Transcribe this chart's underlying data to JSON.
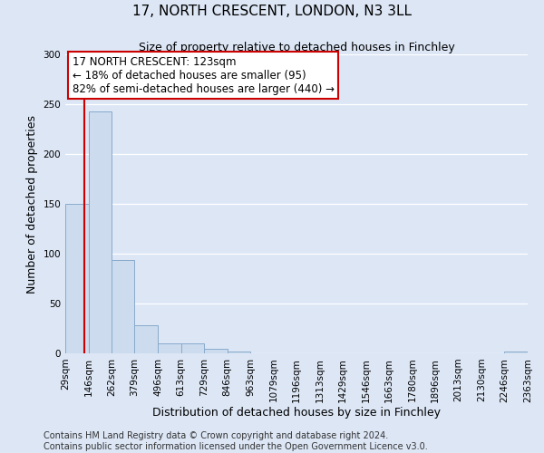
{
  "title": "17, NORTH CRESCENT, LONDON, N3 3LL",
  "subtitle": "Size of property relative to detached houses in Finchley",
  "xlabel": "Distribution of detached houses by size in Finchley",
  "ylabel": "Number of detached properties",
  "bin_edges": [
    29,
    146,
    262,
    379,
    496,
    613,
    729,
    846,
    963,
    1079,
    1196,
    1313,
    1429,
    1546,
    1663,
    1780,
    1896,
    2013,
    2130,
    2246,
    2363
  ],
  "bar_heights": [
    150,
    243,
    94,
    28,
    10,
    10,
    5,
    2,
    0,
    0,
    0,
    0,
    0,
    0,
    0,
    0,
    0,
    0,
    0,
    2
  ],
  "bar_color": "#ccdcee",
  "bar_edge_color": "#88aacc",
  "ylim": [
    0,
    300
  ],
  "yticks": [
    0,
    50,
    100,
    150,
    200,
    250,
    300
  ],
  "property_size": 123,
  "red_line_color": "#cc0000",
  "annotation_line1": "17 NORTH CRESCENT: 123sqm",
  "annotation_line2": "← 18% of detached houses are smaller (95)",
  "annotation_line3": "82% of semi-detached houses are larger (440) →",
  "annotation_box_edge_color": "#cc0000",
  "footer_line1": "Contains HM Land Registry data © Crown copyright and database right 2024.",
  "footer_line2": "Contains public sector information licensed under the Open Government Licence v3.0.",
  "background_color": "#dce6f5",
  "grid_color": "#ffffff",
  "title_fontsize": 11,
  "subtitle_fontsize": 9,
  "axis_label_fontsize": 9,
  "tick_fontsize": 7.5,
  "footer_fontsize": 7,
  "ann_fontsize": 8.5
}
